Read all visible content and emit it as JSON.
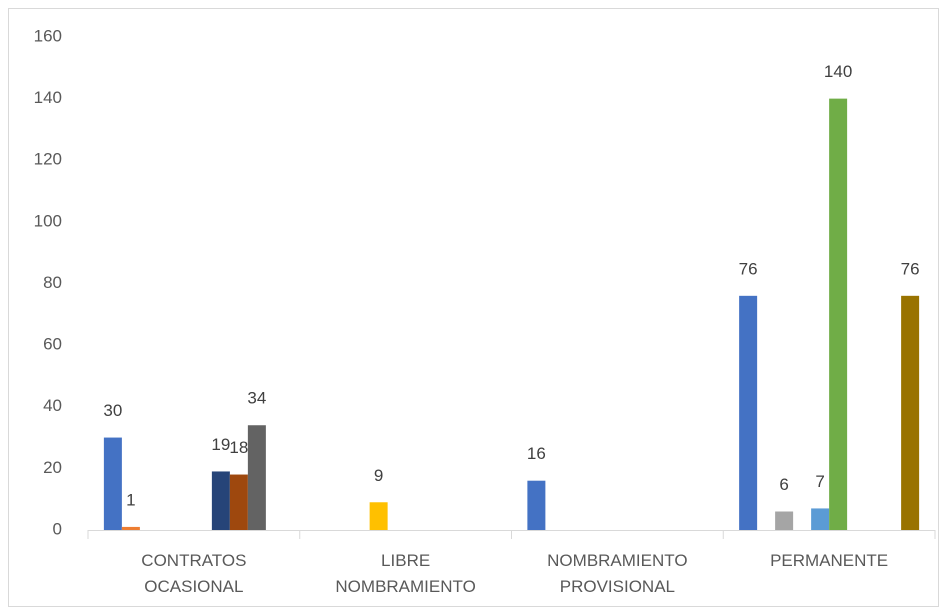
{
  "chart_data": {
    "type": "bar",
    "categories": [
      "CONTRATOS OCASIONAL",
      "LIBRE NOMBRAMIENTO",
      "NOMBRAMIENTO PROVISIONAL",
      "PERMANENTE"
    ],
    "series": [
      {
        "color": "#4472c4",
        "values": [
          30,
          null,
          16,
          76
        ]
      },
      {
        "color": "#ed7d31",
        "values": [
          1,
          null,
          null,
          null
        ]
      },
      {
        "color": "#a5a5a5",
        "values": [
          null,
          null,
          null,
          6
        ]
      },
      {
        "color": "#ffc000",
        "values": [
          null,
          9,
          null,
          null
        ]
      },
      {
        "color": "#5b9bd5",
        "values": [
          null,
          null,
          null,
          7
        ]
      },
      {
        "color": "#70ad47",
        "values": [
          null,
          null,
          null,
          140
        ]
      },
      {
        "color": "#264478",
        "values": [
          19,
          null,
          null,
          null
        ]
      },
      {
        "color": "#9e480e",
        "values": [
          18,
          null,
          null,
          null
        ]
      },
      {
        "color": "#636363",
        "values": [
          34,
          null,
          null,
          null
        ]
      },
      {
        "color": "#997300",
        "values": [
          null,
          null,
          null,
          76
        ]
      }
    ],
    "ylim": [
      0,
      160
    ],
    "yticks": [
      0,
      20,
      40,
      60,
      80,
      100,
      120,
      140,
      160
    ],
    "grid": false
  }
}
